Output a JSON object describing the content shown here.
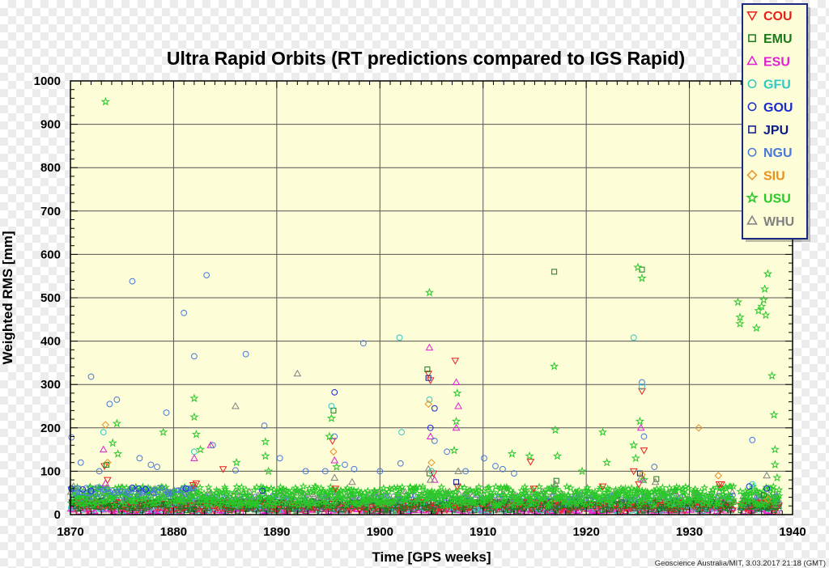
{
  "chart_data": {
    "type": "scatter",
    "title": "Ultra Rapid Orbits (RT predictions compared to IGS Rapid)",
    "xlabel": "Time [GPS weeks]",
    "ylabel": "Weighted RMS [mm]",
    "credit": "Geoscience Australia/MIT, 3.03.2017 21:18 (GMT)",
    "xlim": [
      1870,
      1940
    ],
    "ylim": [
      0,
      1000
    ],
    "x_ticks": [
      1870,
      1880,
      1890,
      1900,
      1910,
      1920,
      1930,
      1940
    ],
    "y_ticks": [
      0,
      100,
      200,
      300,
      400,
      500,
      600,
      700,
      800,
      900,
      1000
    ],
    "grid": true,
    "legend_position": "top-right",
    "plot_background": "#fdfdd8",
    "series": [
      {
        "name": "COU",
        "marker": "triangle-down",
        "color": "#e8201a",
        "points": [
          [
            1873.3,
            112
          ],
          [
            1873.6,
            80
          ],
          [
            1881.9,
            68
          ],
          [
            1882.2,
            72
          ],
          [
            1884.8,
            105
          ],
          [
            1895.4,
            170
          ],
          [
            1895.7,
            60
          ],
          [
            1904.7,
            325
          ],
          [
            1904.9,
            310
          ],
          [
            1905.2,
            95
          ],
          [
            1907.3,
            355
          ],
          [
            1907.5,
            65
          ],
          [
            1914.6,
            122
          ],
          [
            1914.9,
            60
          ],
          [
            1921.6,
            65
          ],
          [
            1924.6,
            100
          ],
          [
            1925.1,
            70
          ],
          [
            1925.4,
            285
          ],
          [
            1925.6,
            148
          ],
          [
            1932.9,
            70
          ],
          [
            1933.1,
            70
          ]
        ]
      },
      {
        "name": "EMU",
        "marker": "square",
        "color": "#1a7a1a",
        "points": [
          [
            1873.5,
            115
          ],
          [
            1895.5,
            240
          ],
          [
            1904.6,
            335
          ],
          [
            1904.8,
            95
          ],
          [
            1916.9,
            560
          ],
          [
            1917.1,
            78
          ],
          [
            1925.4,
            565
          ],
          [
            1926.8,
            82
          ],
          [
            1937.2,
            45
          ]
        ]
      },
      {
        "name": "ESU",
        "marker": "triangle-up",
        "color": "#e020d0",
        "points": [
          [
            1873.2,
            150
          ],
          [
            1873.4,
            72
          ],
          [
            1882.0,
            130
          ],
          [
            1883.6,
            160
          ],
          [
            1895.6,
            125
          ],
          [
            1904.8,
            385
          ],
          [
            1904.9,
            180
          ],
          [
            1905.3,
            80
          ],
          [
            1907.4,
            305
          ],
          [
            1907.6,
            250
          ],
          [
            1907.4,
            200
          ],
          [
            1925.3,
            200
          ],
          [
            1925.5,
            80
          ]
        ]
      },
      {
        "name": "GFU",
        "marker": "circle",
        "color": "#30c8c0",
        "points": [
          [
            1873.2,
            190
          ],
          [
            1882.0,
            145
          ],
          [
            1895.3,
            250
          ],
          [
            1901.9,
            408
          ],
          [
            1902.1,
            190
          ],
          [
            1904.8,
            265
          ],
          [
            1905.0,
            100
          ],
          [
            1924.6,
            408
          ],
          [
            1925.4,
            295
          ],
          [
            1936.1,
            70
          ]
        ]
      },
      {
        "name": "GOU",
        "marker": "circle",
        "color": "#1a2ad0",
        "points": [
          [
            1870.1,
            60
          ],
          [
            1871.2,
            58
          ],
          [
            1872.0,
            55
          ],
          [
            1876.0,
            62
          ],
          [
            1876.6,
            60
          ],
          [
            1877.3,
            58
          ],
          [
            1881.2,
            60
          ],
          [
            1888.6,
            55
          ],
          [
            1895.6,
            282
          ],
          [
            1904.9,
            200
          ],
          [
            1905.3,
            245
          ],
          [
            1935.8,
            65
          ],
          [
            1937.5,
            60
          ]
        ]
      },
      {
        "name": "JPU",
        "marker": "square",
        "color": "#0a1a8a",
        "points": [
          [
            1904.7,
            315
          ],
          [
            1907.4,
            75
          ],
          [
            1925.2,
            95
          ]
        ]
      },
      {
        "name": "NGU",
        "marker": "circle",
        "color": "#4a78d8",
        "points": [
          [
            1870.1,
            178
          ],
          [
            1871.0,
            120
          ],
          [
            1872.0,
            318
          ],
          [
            1872.8,
            100
          ],
          [
            1873.8,
            255
          ],
          [
            1874.5,
            265
          ],
          [
            1876.0,
            538
          ],
          [
            1876.7,
            130
          ],
          [
            1877.8,
            115
          ],
          [
            1878.4,
            110
          ],
          [
            1879.3,
            235
          ],
          [
            1881.0,
            465
          ],
          [
            1882.0,
            365
          ],
          [
            1883.2,
            552
          ],
          [
            1883.8,
            160
          ],
          [
            1886.0,
            102
          ],
          [
            1887.0,
            370
          ],
          [
            1888.8,
            205
          ],
          [
            1890.3,
            130
          ],
          [
            1892.8,
            100
          ],
          [
            1894.7,
            100
          ],
          [
            1895.6,
            180
          ],
          [
            1896.6,
            115
          ],
          [
            1897.5,
            105
          ],
          [
            1898.4,
            395
          ],
          [
            1900.0,
            100
          ],
          [
            1902.0,
            118
          ],
          [
            1905.3,
            170
          ],
          [
            1906.5,
            145
          ],
          [
            1908.3,
            100
          ],
          [
            1910.1,
            130
          ],
          [
            1911.2,
            112
          ],
          [
            1911.9,
            105
          ],
          [
            1913.0,
            95
          ],
          [
            1925.4,
            305
          ],
          [
            1925.6,
            180
          ],
          [
            1926.6,
            110
          ],
          [
            1936.1,
            172
          ]
        ]
      },
      {
        "name": "SIU",
        "marker": "diamond",
        "color": "#e89020",
        "points": [
          [
            1873.4,
            207
          ],
          [
            1873.6,
            120
          ],
          [
            1895.5,
            145
          ],
          [
            1904.7,
            255
          ],
          [
            1905.0,
            120
          ],
          [
            1925.4,
            92
          ],
          [
            1930.9,
            200
          ],
          [
            1932.8,
            90
          ],
          [
            1937.6,
            35
          ]
        ]
      },
      {
        "name": "USU",
        "marker": "star",
        "color": "#28c828",
        "points": [
          [
            1873.4,
            952
          ],
          [
            1874.1,
            165
          ],
          [
            1874.5,
            210
          ],
          [
            1874.6,
            140
          ],
          [
            1879.0,
            190
          ],
          [
            1882.0,
            268
          ],
          [
            1882.0,
            225
          ],
          [
            1882.2,
            185
          ],
          [
            1882.6,
            150
          ],
          [
            1886.1,
            120
          ],
          [
            1888.9,
            168
          ],
          [
            1888.9,
            135
          ],
          [
            1889.2,
            100
          ],
          [
            1895.3,
            222
          ],
          [
            1895.1,
            180
          ],
          [
            1895.8,
            110
          ],
          [
            1904.8,
            512
          ],
          [
            1907.5,
            280
          ],
          [
            1907.4,
            215
          ],
          [
            1907.2,
            148
          ],
          [
            1912.8,
            140
          ],
          [
            1914.5,
            135
          ],
          [
            1916.9,
            342
          ],
          [
            1917.0,
            195
          ],
          [
            1917.2,
            135
          ],
          [
            1919.6,
            100
          ],
          [
            1921.6,
            190
          ],
          [
            1922.0,
            120
          ],
          [
            1924.6,
            160
          ],
          [
            1924.8,
            130
          ],
          [
            1925.0,
            570
          ],
          [
            1925.4,
            545
          ],
          [
            1925.2,
            215
          ],
          [
            1925.6,
            80
          ],
          [
            1934.7,
            490
          ],
          [
            1934.9,
            455
          ],
          [
            1934.9,
            440
          ],
          [
            1936.5,
            430
          ],
          [
            1936.7,
            470
          ],
          [
            1937.0,
            480
          ],
          [
            1937.3,
            520
          ],
          [
            1937.6,
            555
          ],
          [
            1937.2,
            495
          ],
          [
            1937.4,
            460
          ],
          [
            1938.0,
            320
          ],
          [
            1938.2,
            230
          ],
          [
            1938.3,
            150
          ],
          [
            1938.3,
            115
          ],
          [
            1938.5,
            85
          ]
        ]
      },
      {
        "name": "WHU",
        "marker": "triangle-up",
        "color": "#808080",
        "points": [
          [
            1870.3,
            65
          ],
          [
            1886.0,
            250
          ],
          [
            1892.0,
            325
          ],
          [
            1895.6,
            85
          ],
          [
            1897.3,
            75
          ],
          [
            1904.7,
            105
          ],
          [
            1904.9,
            80
          ],
          [
            1907.6,
            100
          ],
          [
            1917.0,
            70
          ],
          [
            1925.3,
            85
          ],
          [
            1926.7,
            75
          ],
          [
            1937.5,
            90
          ]
        ]
      }
    ]
  }
}
